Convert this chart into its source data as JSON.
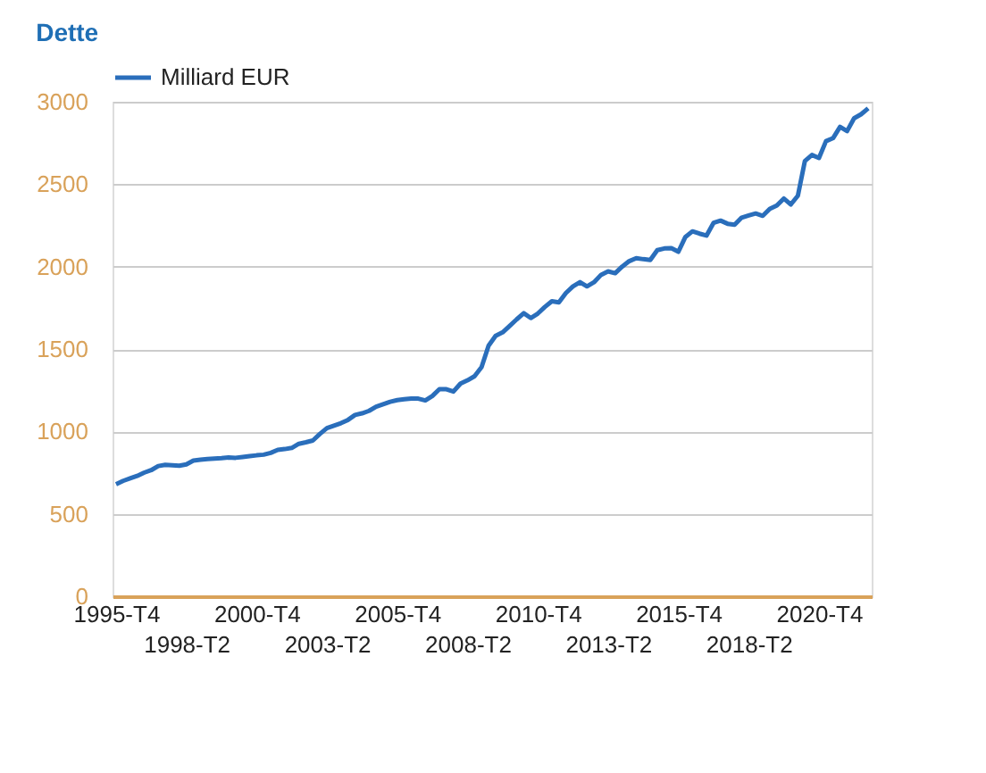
{
  "chart_data": {
    "type": "line",
    "title": "Dette",
    "categories": [
      "1995-T4",
      null,
      null,
      null,
      null,
      null,
      null,
      null,
      null,
      null,
      "1998-T2",
      null,
      null,
      null,
      null,
      null,
      null,
      null,
      null,
      null,
      "2000-T4",
      null,
      null,
      null,
      null,
      null,
      null,
      null,
      null,
      null,
      "2003-T2",
      null,
      null,
      null,
      null,
      null,
      null,
      null,
      null,
      null,
      "2005-T4",
      null,
      null,
      null,
      null,
      null,
      null,
      null,
      null,
      null,
      "2008-T2",
      null,
      null,
      null,
      null,
      null,
      null,
      null,
      null,
      null,
      "2010-T4",
      null,
      null,
      null,
      null,
      null,
      null,
      null,
      null,
      null,
      "2013-T2",
      null,
      null,
      null,
      null,
      null,
      null,
      null,
      null,
      null,
      "2015-T4",
      null,
      null,
      null,
      null,
      null,
      null,
      null,
      null,
      null,
      "2018-T2",
      null,
      null,
      null,
      null,
      null,
      null,
      null,
      null,
      null,
      "2020-T4",
      null,
      null,
      null,
      null,
      null,
      null,
      null
    ],
    "series": [
      {
        "name": "Milliard EUR",
        "color": "#2a6ebb",
        "values": [
          680,
          700,
          715,
          730,
          750,
          765,
          790,
          797,
          795,
          792,
          800,
          823,
          828,
          832,
          835,
          838,
          842,
          840,
          845,
          850,
          855,
          859,
          870,
          888,
          893,
          900,
          925,
          934,
          945,
          985,
          1020,
          1035,
          1050,
          1070,
          1100,
          1110,
          1125,
          1150,
          1165,
          1180,
          1190,
          1195,
          1200,
          1199,
          1188,
          1215,
          1256,
          1256,
          1242,
          1290,
          1310,
          1335,
          1390,
          1520,
          1580,
          1601,
          1640,
          1680,
          1717,
          1688,
          1715,
          1755,
          1790,
          1783,
          1840,
          1880,
          1906,
          1880,
          1905,
          1950,
          1971,
          1960,
          2000,
          2033,
          2051,
          2045,
          2040,
          2100,
          2110,
          2112,
          2090,
          2180,
          2214,
          2200,
          2188,
          2265,
          2279,
          2260,
          2254,
          2297,
          2310,
          2322,
          2308,
          2350,
          2370,
          2413,
          2377,
          2430,
          2641,
          2677,
          2659,
          2761,
          2779,
          2848,
          2822,
          2900,
          2924,
          2960
        ]
      }
    ],
    "ylim": [
      0,
      3000
    ],
    "yticks": [
      0,
      500,
      1000,
      1500,
      2000,
      2500,
      3000
    ],
    "grid": "y",
    "legend": "top left",
    "marker": "none",
    "line_style": "solid"
  }
}
